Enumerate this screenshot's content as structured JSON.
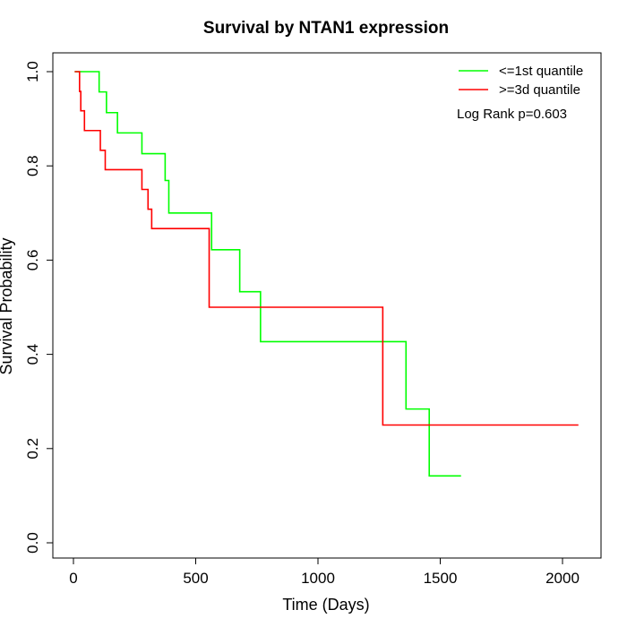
{
  "chart_data": {
    "type": "line",
    "step": true,
    "title": "Survival by NTAN1 expression",
    "xlabel": "Time (Days)",
    "ylabel": "Survival Probability",
    "xlim": [
      0,
      2100
    ],
    "ylim": [
      0,
      1
    ],
    "x_ticks": [
      0,
      500,
      1000,
      1500,
      2000
    ],
    "y_ticks": [
      0.0,
      0.2,
      0.4,
      0.6,
      0.8,
      1.0
    ],
    "x_tick_labels": [
      "0",
      "500",
      "1000",
      "1500",
      "2000"
    ],
    "y_tick_labels": [
      "0.0",
      "0.2",
      "0.4",
      "0.6",
      "0.8",
      "1.0"
    ],
    "grid": false,
    "legend_position": "top-right",
    "annotation": "Log Rank p=0.603",
    "series": [
      {
        "name": "<=1st quantile",
        "color": "#00ff00",
        "x": [
          5,
          105,
          135,
          180,
          280,
          375,
          390,
          565,
          680,
          765,
          1360,
          1455,
          1585
        ],
        "y": [
          1.0,
          0.957,
          0.913,
          0.87,
          0.826,
          0.769,
          0.7,
          0.622,
          0.533,
          0.427,
          0.284,
          0.142,
          0.142
        ]
      },
      {
        "name": ">=3d quantile",
        "color": "#ff0000",
        "x": [
          5,
          25,
          30,
          45,
          110,
          130,
          280,
          305,
          320,
          555,
          1265,
          2065
        ],
        "y": [
          1.0,
          0.958,
          0.917,
          0.875,
          0.833,
          0.792,
          0.75,
          0.708,
          0.667,
          0.5,
          0.25,
          0.25
        ]
      }
    ]
  }
}
